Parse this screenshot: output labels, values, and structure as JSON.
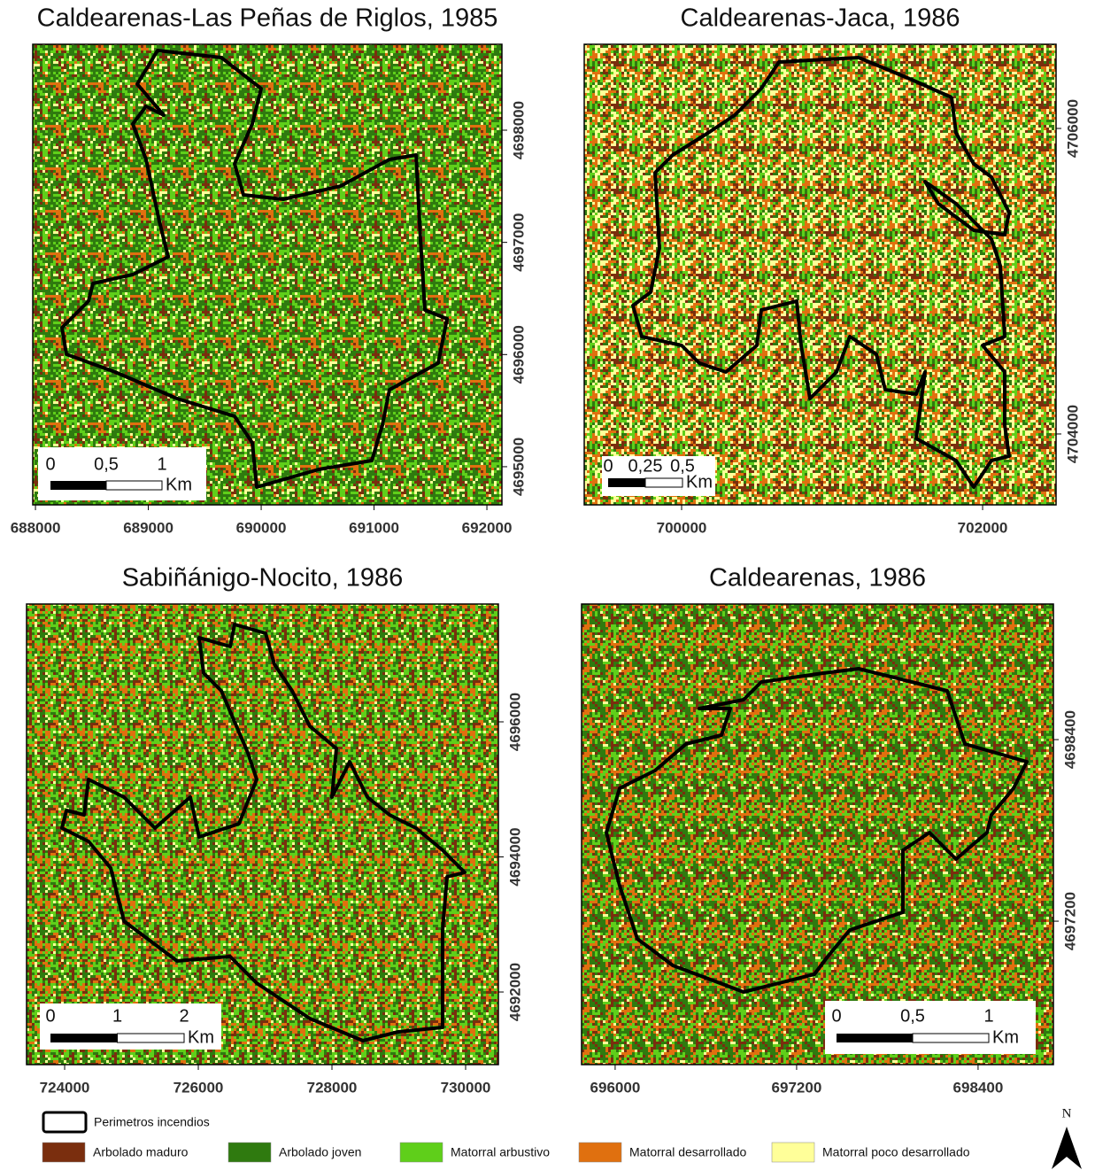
{
  "panels": [
    {
      "title": "Caldearenas-Las Peñas de Riglos, 1985",
      "xlim": [
        687976,
        692133
      ],
      "ylim": [
        4694660,
        4698766
      ],
      "xticks": [
        688000,
        689000,
        690000,
        691000,
        692000
      ],
      "yticks": [
        4695000,
        4696000,
        4697000,
        4698000
      ],
      "scale_labels": [
        "0",
        "0,5",
        "1"
      ],
      "scale_unit": "Km"
    },
    {
      "title": "Caldearenas-Jaca, 1986",
      "xlim": [
        699353,
        702488
      ],
      "ylim": [
        4703536,
        4706551
      ],
      "xticks": [
        700000,
        702000
      ],
      "yticks": [
        4704000,
        4706000
      ],
      "scale_labels": [
        "0",
        "0,25",
        "0,5"
      ],
      "scale_unit": "Km"
    },
    {
      "title": "Sabiñánigo-Nocito, 1986",
      "xlim": [
        723430,
        730490
      ],
      "ylim": [
        4690925,
        4697744
      ],
      "xticks": [
        724000,
        726000,
        728000,
        730000
      ],
      "yticks": [
        4692000,
        4694000,
        4696000
      ],
      "scale_labels": [
        "0",
        "1",
        "2"
      ],
      "scale_unit": "Km"
    },
    {
      "title": "Caldearenas, 1986",
      "xlim": [
        695778,
        698898
      ],
      "ylim": [
        4696252,
        4699296
      ],
      "xticks": [
        696000,
        697200,
        698400
      ],
      "yticks": [
        4697200,
        4698400
      ],
      "scale_labels": [
        "0",
        "0,5",
        "1"
      ],
      "scale_unit": "Km"
    }
  ],
  "legend": [
    {
      "label": "Perimetros incendios",
      "color": "#ffffff"
    },
    {
      "label": "Arbolado maduro",
      "color": "#7a2e0e"
    },
    {
      "label": "Arbolado joven",
      "color": "#2f7a0f"
    },
    {
      "label": "Matorral arbustivo",
      "color": "#5fcf1a"
    },
    {
      "label": "Matorral desarrollado",
      "color": "#e0700f"
    },
    {
      "label": "Matorral poco desarrollado",
      "color": "#ffff99"
    }
  ],
  "north": "N"
}
